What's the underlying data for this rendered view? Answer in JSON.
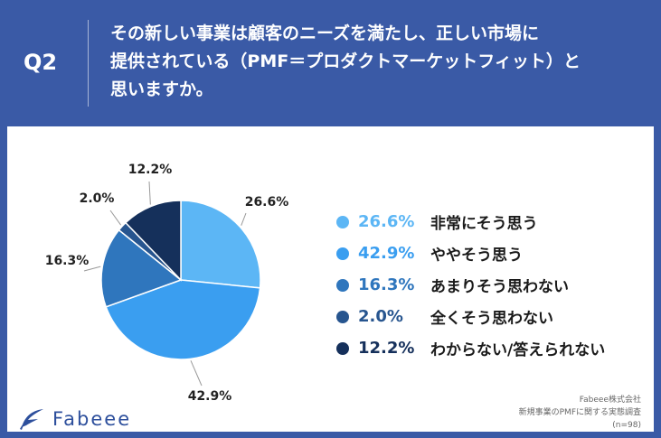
{
  "question": {
    "label": "Q2",
    "lines": [
      "その新しい事業は顧客のニーズを満たし、正しい市場に",
      "提供されている（PMF＝プロダクトマーケットフィット）と",
      "思いますか。"
    ]
  },
  "chart_data": {
    "type": "pie",
    "slices": [
      {
        "label": "非常にそう思う",
        "value": 26.6,
        "display": "26.6%",
        "color": "#5cb6f5"
      },
      {
        "label": "ややそう思う",
        "value": 42.9,
        "display": "42.9%",
        "color": "#3a9ef0"
      },
      {
        "label": "あまりそう思わない",
        "value": 16.3,
        "display": "16.3%",
        "color": "#2f76bd"
      },
      {
        "label": "全くそう思わない",
        "value": 2.0,
        "display": "2.0%",
        "color": "#27558f"
      },
      {
        "label": "わからない/答えられない",
        "value": 12.2,
        "display": "12.2%",
        "color": "#15305b"
      }
    ]
  },
  "logo": {
    "text": "Fabeee"
  },
  "source": {
    "lines": [
      "Fabeee株式会社",
      "新規事業のPMFに関する実態調査",
      "(n=98)"
    ]
  },
  "colors": {
    "header_bg": "#3a5aa6",
    "logo": "#2d4f9c"
  }
}
